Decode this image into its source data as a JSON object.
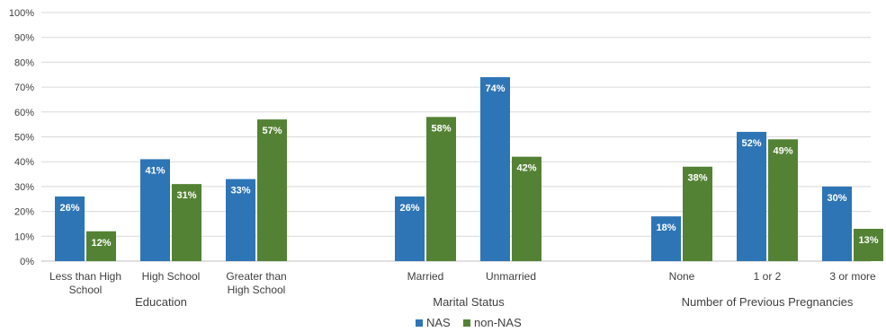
{
  "chart_data": {
    "type": "bar",
    "ylim": [
      0,
      100
    ],
    "yticks": [
      "0%",
      "10%",
      "20%",
      "30%",
      "40%",
      "50%",
      "60%",
      "70%",
      "80%",
      "90%",
      "100%"
    ],
    "grid": true,
    "legend_position": "bottom",
    "colors": {
      "NAS": "#2e75b6",
      "non-NAS": "#548235"
    },
    "series": [
      {
        "name": "NAS",
        "values": [
          26,
          41,
          33,
          26,
          74,
          18,
          52,
          30
        ],
        "labels": [
          "26%",
          "41%",
          "33%",
          "26%",
          "74%",
          "18%",
          "52%",
          "30%"
        ]
      },
      {
        "name": "non-NAS",
        "values": [
          12,
          31,
          57,
          58,
          42,
          38,
          49,
          13
        ],
        "labels": [
          "12%",
          "31%",
          "57%",
          "58%",
          "42%",
          "38%",
          "49%",
          "13%"
        ]
      }
    ],
    "categories": [
      [
        "Less than High",
        "School"
      ],
      [
        "High School"
      ],
      [
        "Greater than",
        "High School"
      ],
      [
        "Married"
      ],
      [
        "Unmarried"
      ],
      [
        "None"
      ],
      [
        "1 or 2"
      ],
      [
        "3 or more"
      ]
    ],
    "groups": [
      {
        "label": "Education"
      },
      {
        "label": "Marital Status"
      },
      {
        "label": "Number of Previous Pregnancies"
      }
    ]
  }
}
